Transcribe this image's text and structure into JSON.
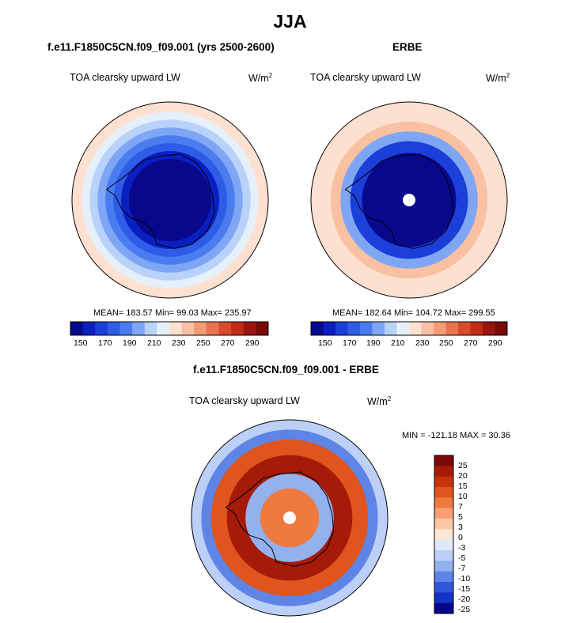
{
  "title": "JJA",
  "panels": [
    {
      "subtitle": "f.e11.F1850C5CN.f09_f09.001 (yrs 2500-2600)",
      "variable": "TOA clearsky upward LW",
      "units_base": "W/m",
      "units_exp": "2",
      "stats": "MEAN= 183.57  Min=  99.03  Max= 235.97",
      "colorbar_labels": [
        "150",
        "170",
        "190",
        "210",
        "230",
        "250",
        "270",
        "290"
      ]
    },
    {
      "subtitle": "ERBE",
      "variable": "TOA clearsky upward LW",
      "units_base": "W/m",
      "units_exp": "2",
      "stats": "MEAN= 182.64  Min= 104.72  Max= 299.55",
      "colorbar_labels": [
        "150",
        "170",
        "190",
        "210",
        "230",
        "250",
        "270",
        "290"
      ]
    }
  ],
  "diff_panel": {
    "subtitle": "f.e11.F1850C5CN.f09_f09.001 - ERBE",
    "variable": "TOA clearsky upward LW",
    "units_base": "W/m",
    "units_exp": "2",
    "stats": "MIN = -121.18 MAX =  30.36",
    "colorbar_labels": [
      "25",
      "20",
      "15",
      "10",
      "7",
      "5",
      "3",
      "0",
      "-3",
      "-5",
      "-7",
      "-10",
      "-15",
      "-20",
      "-25"
    ]
  },
  "colors": {
    "abs_scale": [
      "#08088c",
      "#0a1fbf",
      "#1c3fd9",
      "#2e5ce6",
      "#4a7cf0",
      "#7fa6f5",
      "#b9d2fa",
      "#e6f0fb",
      "#fde0d0",
      "#f9c0a2",
      "#f29b78",
      "#e87352",
      "#d94a2f",
      "#c02a18",
      "#9b1510",
      "#7a0a06"
    ],
    "diff_scale": [
      "#7a0a06",
      "#a51a08",
      "#c8330f",
      "#e0541e",
      "#ee7a40",
      "#f6a072",
      "#fbc7a6",
      "#fde6d6",
      "#dfe9fb",
      "#bccff6",
      "#93b0ef",
      "#5e84e6",
      "#2f57dc",
      "#1233c4",
      "#06068a"
    ]
  },
  "map_fields": {
    "model_rings": [
      {
        "r": 1.0,
        "level": 8
      },
      {
        "r": 0.9,
        "level": 7
      },
      {
        "r": 0.82,
        "level": 6
      },
      {
        "r": 0.74,
        "level": 5
      },
      {
        "r": 0.66,
        "level": 4
      },
      {
        "r": 0.58,
        "level": 3
      },
      {
        "r": 0.5,
        "level": 1
      },
      {
        "r": 0.42,
        "level": 0
      }
    ],
    "erbe_rings": [
      {
        "r": 1.0,
        "level": 8
      },
      {
        "r": 0.8,
        "level": 9
      },
      {
        "r": 0.7,
        "level": 5
      },
      {
        "r": 0.6,
        "level": 2
      },
      {
        "r": 0.48,
        "level": 0
      }
    ],
    "diff_rings": [
      {
        "r": 1.0,
        "level": 9
      },
      {
        "r": 0.9,
        "level": 11
      },
      {
        "r": 0.8,
        "level": 3
      },
      {
        "r": 0.64,
        "level": 1
      },
      {
        "r": 0.45,
        "level": 10
      },
      {
        "r": 0.3,
        "level": 4
      }
    ]
  }
}
